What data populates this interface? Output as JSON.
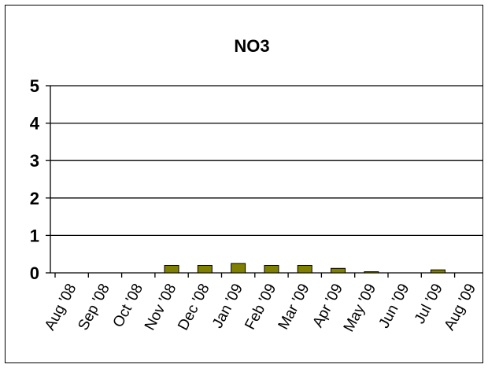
{
  "chart_data": {
    "type": "bar",
    "title": "NO3",
    "xlabel": "",
    "ylabel": "",
    "categories": [
      "Aug '08",
      "Sep '08",
      "Oct '08",
      "Nov '08",
      "Dec '08",
      "Jan '09",
      "Feb '09",
      "Mar '09",
      "Apr '09",
      "May '09",
      "Jun '09",
      "Jul '09",
      "Aug '09"
    ],
    "values": [
      0,
      0,
      0,
      0.2,
      0.2,
      0.25,
      0.2,
      0.2,
      0.12,
      0.03,
      0,
      0.08,
      0
    ],
    "ylim": [
      0,
      5
    ],
    "yticks": [
      "0",
      "1",
      "2",
      "3",
      "4",
      "5"
    ],
    "grid": true,
    "legend": "none",
    "colors": {
      "bar_fill": "#808000",
      "bar_stroke": "#000000",
      "grid": "#000000"
    }
  }
}
